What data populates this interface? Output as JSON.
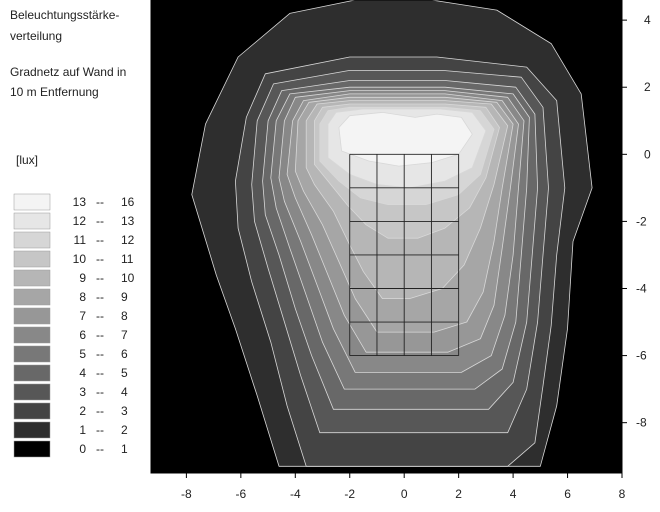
{
  "chart_data": {
    "type": "heatmap",
    "title_lines": [
      "Beleuchtungsstärke-",
      "verteilung"
    ],
    "subtitle_lines": [
      "Gradnetz auf Wand in",
      "10 m Entfernung"
    ],
    "unit_label": "[lux]",
    "xlabel": "",
    "ylabel": "",
    "xlim": [
      -9.3,
      8
    ],
    "ylim": [
      -9.5,
      4.6
    ],
    "x_ticks": [
      -8,
      -6,
      -4,
      -2,
      0,
      2,
      4,
      6,
      8
    ],
    "y_ticks": [
      4,
      2,
      0,
      -2,
      -4,
      -6,
      -8
    ],
    "y_axis_position": "right",
    "grid": true,
    "grid_x": [
      -2,
      -1,
      0,
      1,
      2
    ],
    "grid_y": [
      -1,
      -2,
      -3,
      -4,
      -5,
      -6
    ],
    "legend_placement": "left",
    "legend": [
      {
        "label_from": "13",
        "label_to": "16",
        "color": "#f4f4f4"
      },
      {
        "label_from": "12",
        "label_to": "13",
        "color": "#e6e6e6"
      },
      {
        "label_from": "11",
        "label_to": "12",
        "color": "#d6d6d6"
      },
      {
        "label_from": "10",
        "label_to": "11",
        "color": "#c6c6c6"
      },
      {
        "label_from": "9",
        "label_to": "10",
        "color": "#b6b6b6"
      },
      {
        "label_from": "8",
        "label_to": "9",
        "color": "#a6a6a6"
      },
      {
        "label_from": "7",
        "label_to": "8",
        "color": "#979797"
      },
      {
        "label_from": "6",
        "label_to": "7",
        "color": "#888888"
      },
      {
        "label_from": "5",
        "label_to": "6",
        "color": "#787878"
      },
      {
        "label_from": "4",
        "label_to": "5",
        "color": "#686868"
      },
      {
        "label_from": "3",
        "label_to": "4",
        "color": "#575757"
      },
      {
        "label_from": "2",
        "label_to": "3",
        "color": "#444444"
      },
      {
        "label_from": "1",
        "label_to": "2",
        "color": "#2e2e2e"
      },
      {
        "label_from": "0",
        "label_to": "1",
        "color": "#000000"
      }
    ],
    "contours": [
      {
        "level": 1,
        "points": [
          [
            -7.8,
            -1.2
          ],
          [
            -7.3,
            0.9
          ],
          [
            -6.1,
            2.9
          ],
          [
            -4.2,
            4.2
          ],
          [
            -1.8,
            4.6
          ],
          [
            1,
            4.6
          ],
          [
            3.4,
            4.3
          ],
          [
            5.4,
            3.3
          ],
          [
            6.5,
            1.8
          ],
          [
            6.9,
            -1
          ],
          [
            6.2,
            -2.6
          ],
          [
            6,
            -5.2
          ],
          [
            5.6,
            -7.5
          ],
          [
            5,
            -9.3
          ],
          [
            -4.6,
            -9.3
          ],
          [
            -5.4,
            -7.2
          ],
          [
            -6.2,
            -5.2
          ],
          [
            -6.9,
            -3.6
          ]
        ]
      },
      {
        "level": 2,
        "points": [
          [
            -6.2,
            -0.8
          ],
          [
            -5.8,
            1.1
          ],
          [
            -5.1,
            2.4
          ],
          [
            -2,
            2.9
          ],
          [
            1.2,
            2.9
          ],
          [
            4.5,
            2.6
          ],
          [
            5.6,
            1.6
          ],
          [
            5.9,
            -1
          ],
          [
            5.6,
            -3
          ],
          [
            5.4,
            -5.1
          ],
          [
            5.1,
            -6.9
          ],
          [
            4.8,
            -8.6
          ],
          [
            3.8,
            -9.3
          ],
          [
            -3.6,
            -9.3
          ],
          [
            -4.3,
            -7.5
          ],
          [
            -4.9,
            -5.6
          ],
          [
            -5.6,
            -3.8
          ],
          [
            -6.1,
            -2.2
          ]
        ]
      },
      {
        "level": 3,
        "points": [
          [
            -5.6,
            -0.9
          ],
          [
            -5.4,
            1
          ],
          [
            -4.8,
            2.1
          ],
          [
            -2,
            2.5
          ],
          [
            1.4,
            2.5
          ],
          [
            4.3,
            2.3
          ],
          [
            5.1,
            1.4
          ],
          [
            5.3,
            -1
          ],
          [
            5.1,
            -3
          ],
          [
            4.9,
            -5
          ],
          [
            4.5,
            -7
          ],
          [
            3.8,
            -8.3
          ],
          [
            -3.1,
            -8.3
          ],
          [
            -3.8,
            -6.6
          ],
          [
            -4.4,
            -5
          ],
          [
            -5,
            -3.4
          ],
          [
            -5.5,
            -2
          ]
        ]
      },
      {
        "level": 4,
        "points": [
          [
            -5.2,
            -0.8
          ],
          [
            -5,
            1
          ],
          [
            -4.5,
            1.9
          ],
          [
            -2,
            2.2
          ],
          [
            1.5,
            2.2
          ],
          [
            4.1,
            2
          ],
          [
            4.8,
            1.2
          ],
          [
            4.9,
            -1
          ],
          [
            4.7,
            -3
          ],
          [
            4.5,
            -5
          ],
          [
            4,
            -6.8
          ],
          [
            3.1,
            -7.6
          ],
          [
            -2.6,
            -7.6
          ],
          [
            -3.4,
            -6
          ],
          [
            -4,
            -4.6
          ],
          [
            -4.6,
            -3
          ],
          [
            -5.1,
            -1.8
          ]
        ]
      },
      {
        "level": 5,
        "points": [
          [
            -4.9,
            -0.7
          ],
          [
            -4.7,
            1
          ],
          [
            -4.2,
            1.8
          ],
          [
            -2,
            2
          ],
          [
            1.5,
            2
          ],
          [
            4,
            1.8
          ],
          [
            4.6,
            1.1
          ],
          [
            4.5,
            -1
          ],
          [
            4.3,
            -3
          ],
          [
            4.1,
            -5
          ],
          [
            3.6,
            -6.4
          ],
          [
            2.6,
            -7
          ],
          [
            -2.2,
            -7
          ],
          [
            -3,
            -5.6
          ],
          [
            -3.6,
            -4.2
          ],
          [
            -4.2,
            -2.8
          ],
          [
            -4.7,
            -1.6
          ]
        ]
      },
      {
        "level": 6,
        "points": [
          [
            -4.6,
            -0.7
          ],
          [
            -4.4,
            1
          ],
          [
            -4,
            1.7
          ],
          [
            -2,
            1.9
          ],
          [
            1.5,
            1.9
          ],
          [
            3.8,
            1.7
          ],
          [
            4.4,
            1
          ],
          [
            4.2,
            -1
          ],
          [
            4,
            -3
          ],
          [
            3.7,
            -4.8
          ],
          [
            3.2,
            -6
          ],
          [
            2.1,
            -6.5
          ],
          [
            -1.8,
            -6.5
          ],
          [
            -2.6,
            -5.2
          ],
          [
            -3.2,
            -3.9
          ],
          [
            -3.8,
            -2.6
          ],
          [
            -4.4,
            -1.4
          ]
        ]
      },
      {
        "level": 7,
        "points": [
          [
            -4.3,
            -0.6
          ],
          [
            -4.1,
            1
          ],
          [
            -3.7,
            1.6
          ],
          [
            -2,
            1.8
          ],
          [
            1.5,
            1.8
          ],
          [
            3.6,
            1.6
          ],
          [
            4.2,
            0.9
          ],
          [
            3.9,
            -1
          ],
          [
            3.6,
            -2.8
          ],
          [
            3.3,
            -4.5
          ],
          [
            2.8,
            -5.5
          ],
          [
            1.6,
            -5.9
          ],
          [
            -1.4,
            -5.9
          ],
          [
            -2.2,
            -4.8
          ],
          [
            -2.8,
            -3.6
          ],
          [
            -3.4,
            -2.4
          ],
          [
            -4,
            -1.3
          ]
        ]
      },
      {
        "level": 8,
        "points": [
          [
            -4,
            -0.5
          ],
          [
            -3.9,
            1
          ],
          [
            -3.5,
            1.55
          ],
          [
            -2,
            1.7
          ],
          [
            1.5,
            1.7
          ],
          [
            3.4,
            1.55
          ],
          [
            4,
            0.9
          ],
          [
            3.6,
            -1
          ],
          [
            3.3,
            -2.6
          ],
          [
            2.9,
            -4.1
          ],
          [
            2.3,
            -5
          ],
          [
            1.1,
            -5.3
          ],
          [
            -1,
            -5.3
          ],
          [
            -1.8,
            -4.3
          ],
          [
            -2.4,
            -3.2
          ],
          [
            -3,
            -2.1
          ],
          [
            -3.7,
            -1.1
          ]
        ]
      },
      {
        "level": 9,
        "points": [
          [
            -3.6,
            -0.4
          ],
          [
            -3.6,
            1
          ],
          [
            -3.2,
            1.5
          ],
          [
            -2,
            1.6
          ],
          [
            1.5,
            1.6
          ],
          [
            3.2,
            1.5
          ],
          [
            3.8,
            0.85
          ],
          [
            3.3,
            -0.9
          ],
          [
            2.8,
            -2.2
          ],
          [
            2.2,
            -3.3
          ],
          [
            1.4,
            -4
          ],
          [
            0.2,
            -4.3
          ],
          [
            -0.8,
            -4.3
          ],
          [
            -1.5,
            -3.5
          ],
          [
            -2,
            -2.7
          ],
          [
            -2.6,
            -1.7
          ],
          [
            -3.3,
            -0.9
          ]
        ]
      },
      {
        "level": 10,
        "points": [
          [
            -3.3,
            -0.3
          ],
          [
            -3.3,
            1
          ],
          [
            -3,
            1.4
          ],
          [
            -2,
            1.5
          ],
          [
            1.5,
            1.5
          ],
          [
            3,
            1.4
          ],
          [
            3.5,
            0.8
          ],
          [
            3,
            -0.7
          ],
          [
            2.4,
            -1.6
          ],
          [
            1.5,
            -2.2
          ],
          [
            0.5,
            -2.5
          ],
          [
            -0.6,
            -2.5
          ],
          [
            -1.4,
            -2.1
          ],
          [
            -2.1,
            -1.5
          ],
          [
            -2.8,
            -0.8
          ]
        ]
      },
      {
        "level": 11,
        "points": [
          [
            -3.1,
            -0.2
          ],
          [
            -3.1,
            0.9
          ],
          [
            -2.8,
            1.3
          ],
          [
            -2,
            1.4
          ],
          [
            1.5,
            1.4
          ],
          [
            2.8,
            1.3
          ],
          [
            3.3,
            0.75
          ],
          [
            2.8,
            -0.6
          ],
          [
            2,
            -1.2
          ],
          [
            0.8,
            -1.5
          ],
          [
            -0.6,
            -1.5
          ],
          [
            -1.6,
            -1.3
          ],
          [
            -2.4,
            -0.8
          ]
        ]
      },
      {
        "level": 12,
        "points": [
          [
            -2.8,
            -0.1
          ],
          [
            -2.8,
            0.9
          ],
          [
            -2.5,
            1.25
          ],
          [
            -1.5,
            1.35
          ],
          [
            1.3,
            1.35
          ],
          [
            2.5,
            1.25
          ],
          [
            3,
            0.7
          ],
          [
            2.5,
            -0.4
          ],
          [
            1.5,
            -0.8
          ],
          [
            0.2,
            -1
          ],
          [
            -1,
            -0.9
          ],
          [
            -2,
            -0.6
          ]
        ]
      },
      {
        "level": 13,
        "points": [
          [
            -2.3,
            0.1
          ],
          [
            -2.4,
            0.8
          ],
          [
            -2,
            1.15
          ],
          [
            -0.8,
            1.25
          ],
          [
            0.4,
            1.1
          ],
          [
            1.2,
            1.2
          ],
          [
            2.1,
            1.1
          ],
          [
            2.5,
            0.6
          ],
          [
            2,
            0
          ],
          [
            1,
            -0.25
          ],
          [
            -0.2,
            -0.35
          ],
          [
            -1.3,
            -0.2
          ]
        ]
      }
    ]
  }
}
